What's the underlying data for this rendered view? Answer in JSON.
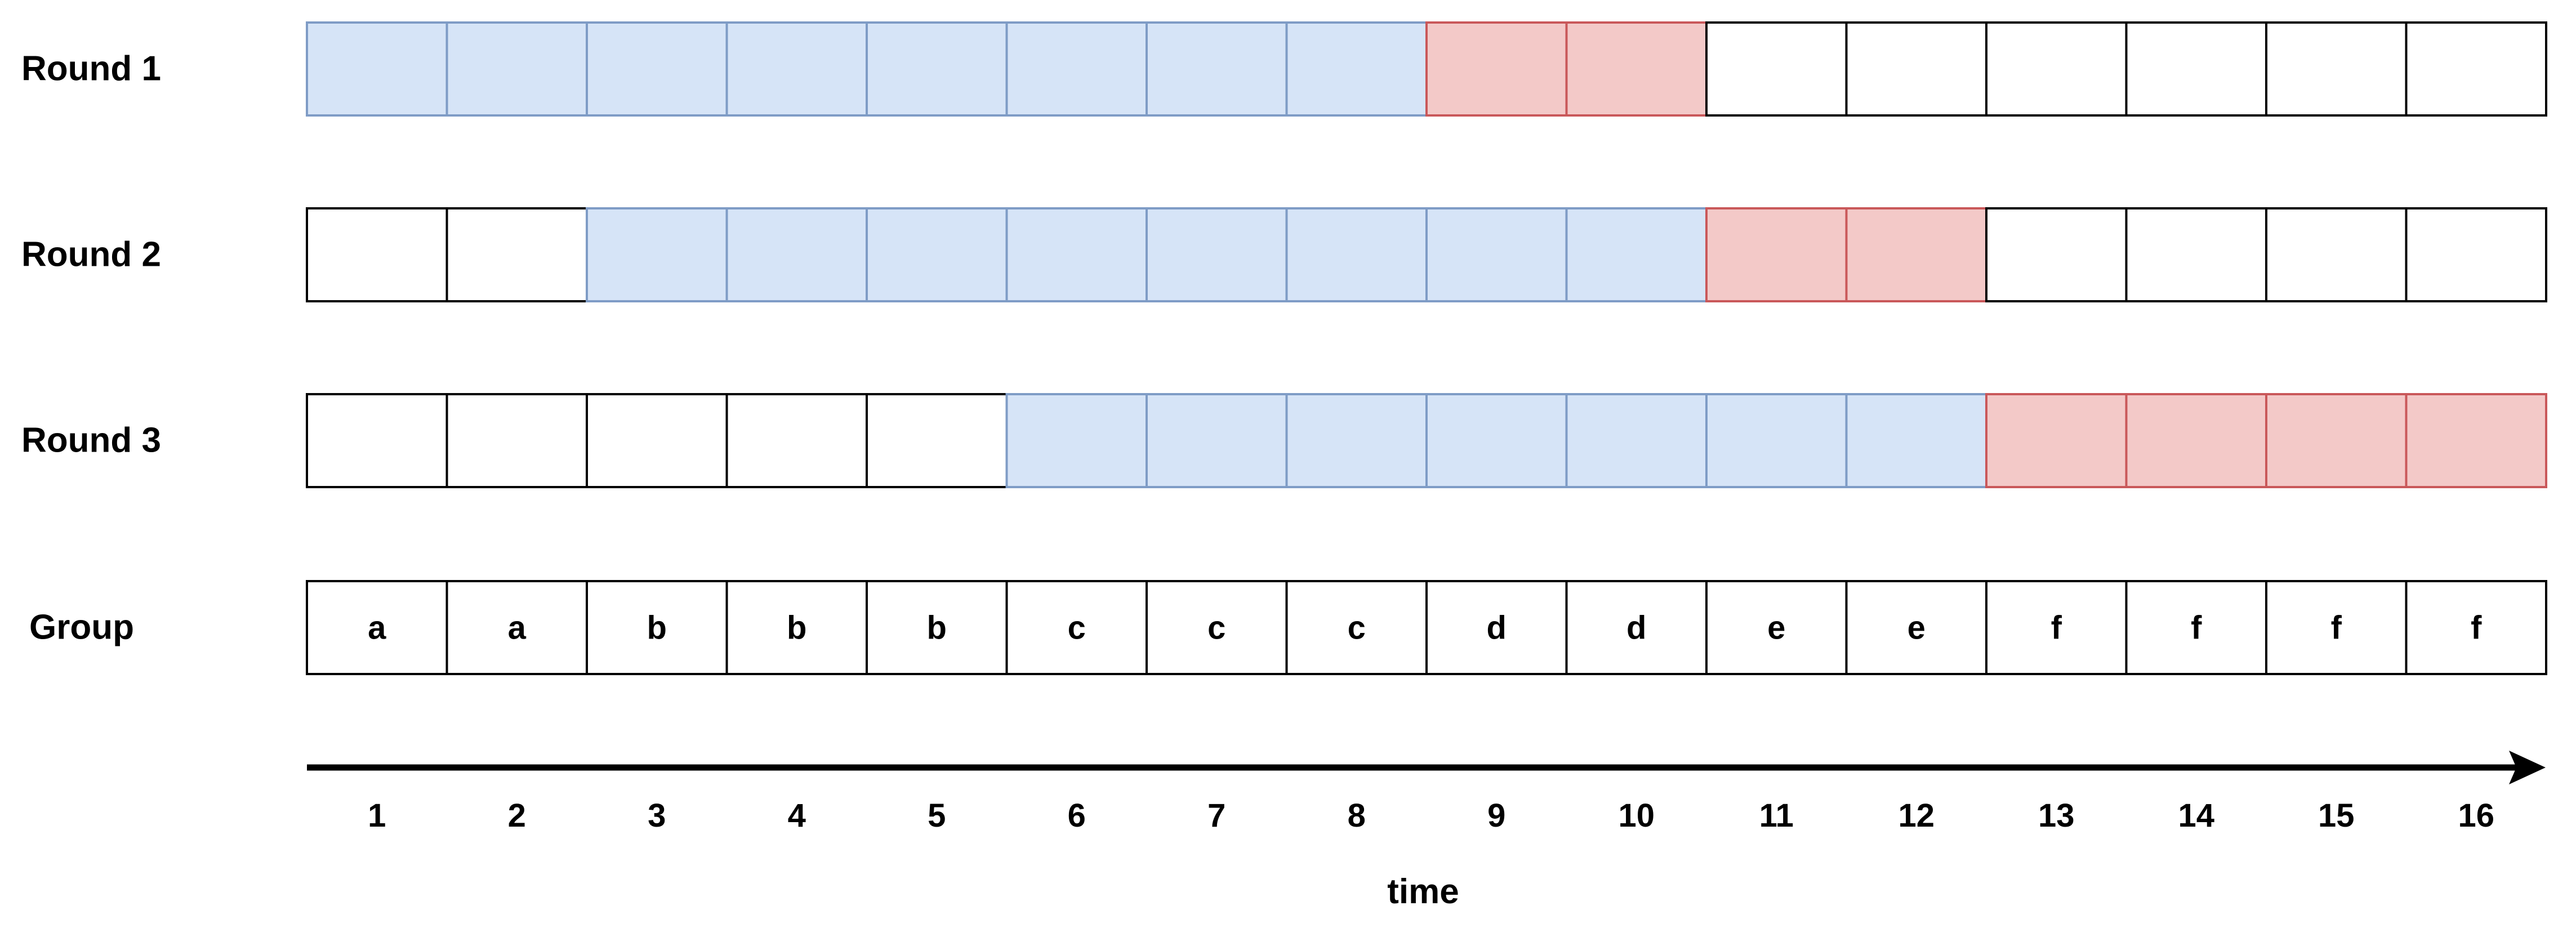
{
  "rows": [
    {
      "label": "Round 1",
      "cells": [
        "blue",
        "blue",
        "blue",
        "blue",
        "blue",
        "blue",
        "blue",
        "blue",
        "red",
        "red",
        "white",
        "white",
        "white",
        "white",
        "white",
        "white"
      ]
    },
    {
      "label": "Round 2",
      "cells": [
        "white",
        "white",
        "blue",
        "blue",
        "blue",
        "blue",
        "blue",
        "blue",
        "blue",
        "blue",
        "red",
        "red",
        "white",
        "white",
        "white",
        "white"
      ]
    },
    {
      "label": "Round 3",
      "cells": [
        "white",
        "white",
        "white",
        "white",
        "white",
        "blue",
        "blue",
        "blue",
        "blue",
        "blue",
        "blue",
        "blue",
        "red",
        "red",
        "red",
        "red"
      ]
    }
  ],
  "group": {
    "label": "Group",
    "values": [
      "a",
      "a",
      "b",
      "b",
      "b",
      "c",
      "c",
      "c",
      "d",
      "d",
      "e",
      "e",
      "f",
      "f",
      "f",
      "f"
    ]
  },
  "time_axis": {
    "ticks": [
      "1",
      "2",
      "3",
      "4",
      "5",
      "6",
      "7",
      "8",
      "9",
      "10",
      "11",
      "12",
      "13",
      "14",
      "15",
      "16"
    ],
    "title": "time"
  },
  "colors": {
    "blue": "#d6e4f7",
    "blue_border": "#7f9cc6",
    "red": "#f3c9c8",
    "red_border": "#c9585a",
    "white": "#ffffff",
    "white_border": "#000000",
    "axis": "#000000"
  }
}
